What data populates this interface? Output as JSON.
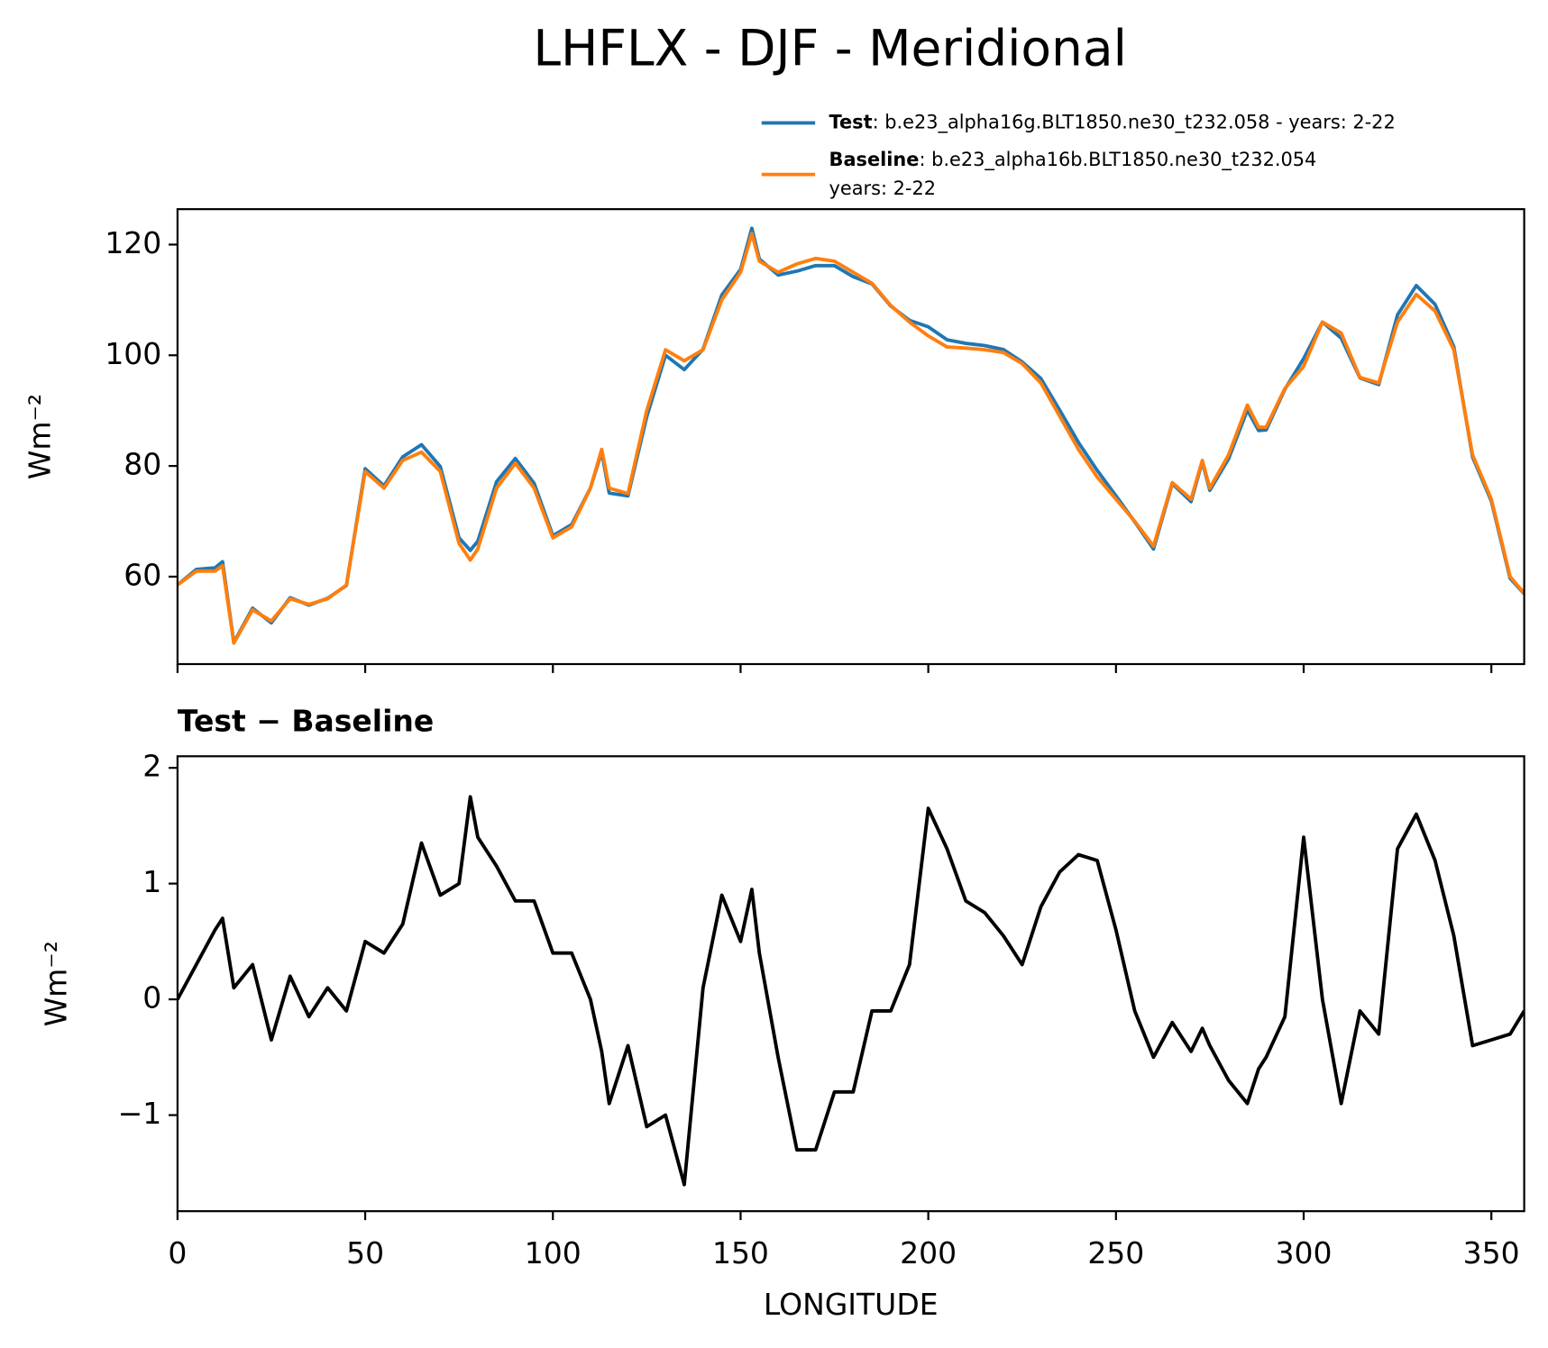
{
  "chart_data": [
    {
      "type": "line",
      "title": "LHFLX - DJF - Meridional",
      "ylabel": "Wm⁻²",
      "x": [
        0,
        5,
        10,
        12,
        15,
        20,
        25,
        30,
        35,
        40,
        45,
        50,
        55,
        60,
        65,
        70,
        75,
        78,
        80,
        85,
        90,
        95,
        100,
        105,
        110,
        113,
        115,
        120,
        125,
        130,
        135,
        140,
        145,
        150,
        153,
        155,
        160,
        165,
        170,
        175,
        180,
        185,
        190,
        195,
        200,
        205,
        210,
        215,
        220,
        225,
        230,
        235,
        240,
        245,
        250,
        255,
        260,
        265,
        270,
        273,
        275,
        280,
        285,
        288,
        290,
        295,
        300,
        305,
        310,
        315,
        320,
        325,
        330,
        335,
        340,
        345,
        350,
        355,
        358.75
      ],
      "series": [
        {
          "name": "Test",
          "description": [
            ": b.e23_alpha16g.BLT1850.ne30_t232.058 - years: 2-22"
          ],
          "color": "#1f77b4",
          "values": [
            58.5,
            61.3,
            61.6,
            62.7,
            48.1,
            54.3,
            51.65,
            56.2,
            54.85,
            56.1,
            58.4,
            79.5,
            76.4,
            81.65,
            83.85,
            79.9,
            67,
            64.75,
            66.4,
            77.15,
            81.35,
            76.85,
            67.4,
            69.4,
            76,
            82.55,
            75.1,
            74.6,
            88.9,
            100,
            97.4,
            101.1,
            110.9,
            115.5,
            122.95,
            117.4,
            114.5,
            115.2,
            116.2,
            116.2,
            114.2,
            112.9,
            108.9,
            106.3,
            105.15,
            102.8,
            102.15,
            101.75,
            101.05,
            98.8,
            95.8,
            90.1,
            84.25,
            79.2,
            74.6,
            69.9,
            65,
            76.8,
            73.55,
            80.75,
            75.6,
            81.3,
            90.1,
            86.4,
            86.5,
            93.85,
            99.4,
            106,
            103.1,
            95.9,
            94.7,
            107.3,
            112.6,
            109.2,
            101.55,
            81.6,
            73.65,
            59.7,
            56.9
          ]
        },
        {
          "name": "Baseline",
          "description": [
            ": b.e23_alpha16b.BLT1850.ne30_t232.054",
            "years: 2-22"
          ],
          "color": "#ff7f0e",
          "values": [
            58.5,
            61,
            61,
            62,
            48,
            54,
            52,
            56,
            55,
            56,
            58.5,
            79,
            76,
            81,
            82.5,
            79,
            66,
            63,
            65,
            76,
            80.5,
            76,
            67,
            69,
            76,
            83,
            76,
            75,
            90,
            101,
            99,
            101,
            110,
            115,
            122,
            117,
            115,
            116.5,
            117.5,
            117,
            115,
            113,
            109,
            106,
            103.5,
            101.5,
            101.3,
            101,
            100.5,
            98.5,
            95,
            89,
            83,
            78,
            74,
            70,
            65.5,
            77,
            74,
            81,
            76,
            82,
            91,
            87,
            87,
            94,
            98,
            106,
            104,
            96,
            95,
            106,
            111,
            108,
            101,
            82,
            74,
            60,
            57
          ]
        }
      ],
      "xlim": [
        0,
        358.75
      ],
      "xticks": [
        0,
        50,
        100,
        150,
        200,
        250,
        300,
        350
      ],
      "ylim": [
        44.2,
        126.4
      ],
      "yticks": [
        60,
        80,
        100,
        120
      ]
    },
    {
      "type": "line",
      "title": "Test − Baseline",
      "ylabel": "Wm⁻²",
      "xlabel": "LONGITUDE",
      "x": [
        0,
        5,
        10,
        12,
        15,
        20,
        25,
        30,
        35,
        40,
        45,
        50,
        55,
        60,
        65,
        70,
        75,
        78,
        80,
        85,
        90,
        95,
        100,
        105,
        110,
        113,
        115,
        120,
        125,
        130,
        135,
        140,
        145,
        150,
        153,
        155,
        160,
        165,
        170,
        175,
        180,
        185,
        190,
        195,
        200,
        205,
        210,
        215,
        220,
        225,
        230,
        235,
        240,
        245,
        250,
        255,
        260,
        265,
        270,
        273,
        275,
        280,
        285,
        288,
        290,
        295,
        300,
        305,
        310,
        315,
        320,
        325,
        330,
        335,
        340,
        345,
        350,
        355,
        358.75
      ],
      "series": [
        {
          "color": "#000000",
          "values": [
            0,
            0.3,
            0.6,
            0.7,
            0.1,
            0.3,
            -0.35,
            0.2,
            -0.15,
            0.1,
            -0.1,
            0.5,
            0.4,
            0.65,
            1.35,
            0.9,
            1.0,
            1.75,
            1.4,
            1.15,
            0.85,
            0.85,
            0.4,
            0.4,
            0,
            -0.45,
            -0.9,
            -0.4,
            -1.1,
            -1.0,
            -1.6,
            0.1,
            0.9,
            0.5,
            0.95,
            0.4,
            -0.5,
            -1.3,
            -1.3,
            -0.8,
            -0.8,
            -0.1,
            -0.1,
            0.3,
            1.65,
            1.3,
            0.85,
            0.75,
            0.55,
            0.3,
            0.8,
            1.1,
            1.25,
            1.2,
            0.6,
            -0.1,
            -0.5,
            -0.2,
            -0.45,
            -0.25,
            -0.4,
            -0.7,
            -0.9,
            -0.6,
            -0.5,
            -0.15,
            1.4,
            0,
            -0.9,
            -0.1,
            -0.3,
            1.3,
            1.6,
            1.2,
            0.55,
            -0.4,
            -0.35,
            -0.3,
            -0.1
          ]
        }
      ],
      "xlim": [
        0,
        358.75
      ],
      "xticks": [
        0,
        50,
        100,
        150,
        200,
        250,
        300,
        350
      ],
      "ylim": [
        -1.83,
        2.1
      ],
      "yticks": [
        {
          "value": -1,
          "label": "−1"
        },
        0,
        1,
        2
      ]
    }
  ]
}
